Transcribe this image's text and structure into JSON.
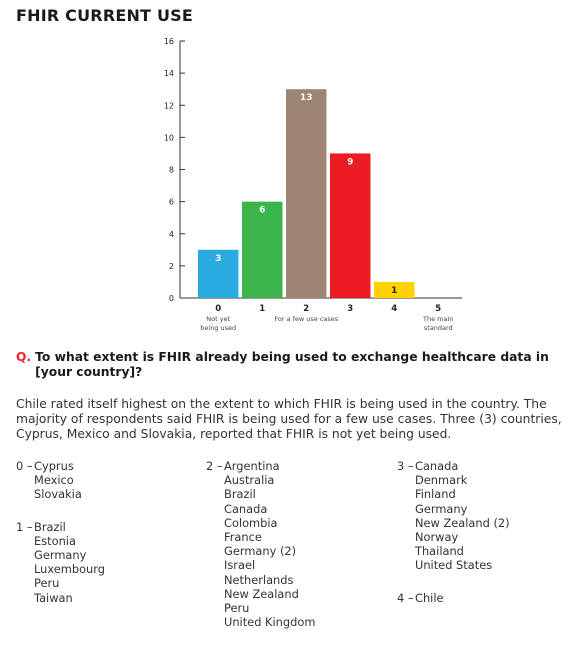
{
  "title": "FHIR CURRENT USE",
  "chart_data": {
    "type": "bar",
    "categories": [
      "0",
      "1",
      "2",
      "3",
      "4",
      "5"
    ],
    "category_sublabels": [
      "Not yet being used",
      "",
      "For a few use cases",
      "",
      "",
      "The main standard"
    ],
    "values": [
      3,
      6,
      13,
      9,
      1,
      0
    ],
    "bar_colors": [
      "#29abe2",
      "#39b54a",
      "#9e8474",
      "#ed1c24",
      "#ffd200",
      "#cccccc"
    ],
    "ylim": [
      0,
      16
    ],
    "yticks": [
      0,
      2,
      4,
      6,
      8,
      10,
      12,
      14,
      16
    ],
    "xlabel": "",
    "ylabel": "",
    "grid": false
  },
  "question": {
    "marker": "Q.",
    "text": "To what extent is FHIR already being used to exchange healthcare data in [your country]?"
  },
  "summary": "Chile rated itself highest on the extent to which FHIR is being used in the country. The majority of respondents said FHIR is being used for a few use cases. Three (3) countries, Cyprus, Mexico and Slovakia, reported that FHIR is not yet being used.",
  "columns": [
    [
      {
        "label": "0 –",
        "countries": [
          "Cyprus",
          "Mexico",
          "Slovakia"
        ]
      },
      {
        "label": "1 –",
        "countries": [
          "Brazil",
          "Estonia",
          "Germany",
          "Luxembourg",
          "Peru",
          "Taiwan"
        ]
      }
    ],
    [
      {
        "label": "2 –",
        "countries": [
          "Argentina",
          "Australia",
          "Brazil",
          "Canada",
          "Colombia",
          "France",
          "Germany (2)",
          "Israel",
          "Netherlands",
          "New Zealand",
          "Peru",
          "United Kingdom"
        ]
      }
    ],
    [
      {
        "label": "3 –",
        "countries": [
          "Canada",
          "Denmark",
          "Finland",
          "Germany",
          "New Zealand (2)",
          "Norway",
          "Thailand",
          "United States"
        ]
      },
      {
        "label": "4 –",
        "countries": [
          "Chile"
        ]
      }
    ]
  ]
}
